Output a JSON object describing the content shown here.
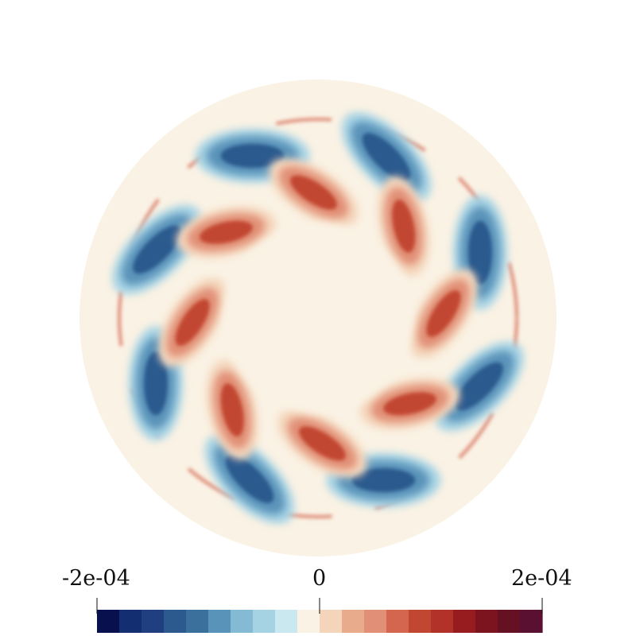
{
  "colorbar": {
    "min_label": "-2e-04",
    "mid_label": "0",
    "max_label": "2e-04",
    "colors": [
      "#08104d",
      "#142e72",
      "#203f80",
      "#2c5a8e",
      "#3b6f9c",
      "#5a93b9",
      "#84bad4",
      "#a6d3e4",
      "#c9e8f0",
      "#faf2e4",
      "#f4d5bb",
      "#e8ac8d",
      "#e18f76",
      "#d4654f",
      "#c24732",
      "#b23229",
      "#961c1f",
      "#7c1420",
      "#661024",
      "#5a1031"
    ]
  },
  "field": {
    "background_color": "#faf2e4",
    "positive_color": "#c8402f",
    "negative_color": "#2f6b97"
  }
}
